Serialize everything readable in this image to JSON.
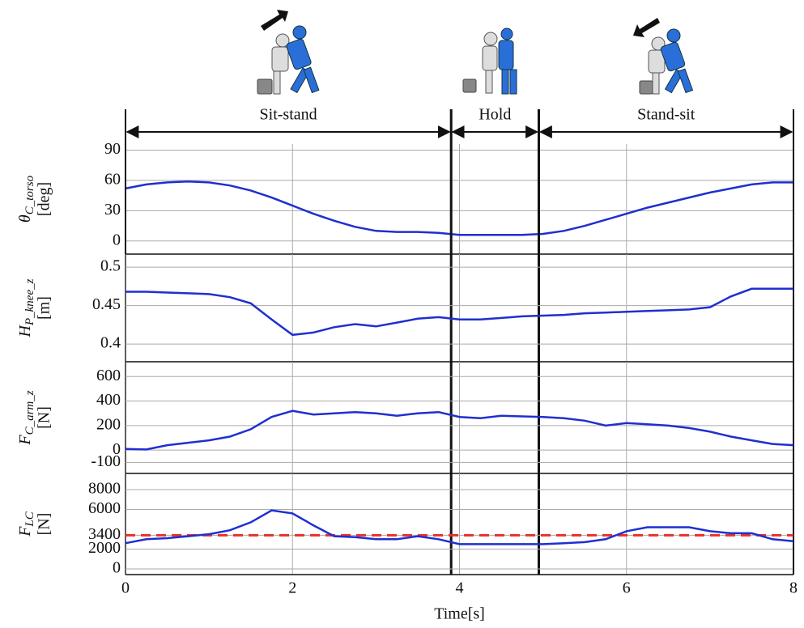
{
  "chart_data": [
    {
      "type": "line",
      "ylabel": {
        "symbol": "θ",
        "subscript": "C_torso",
        "unit": "[deg]"
      },
      "phases": [
        {
          "label": "Sit-stand",
          "start": 0,
          "end": 3.9
        },
        {
          "label": "Hold",
          "start": 3.9,
          "end": 4.95
        },
        {
          "label": "Stand-sit",
          "start": 4.95,
          "end": 8
        }
      ],
      "x": [
        0,
        0.25,
        0.5,
        0.75,
        1,
        1.25,
        1.5,
        1.75,
        2,
        2.25,
        2.5,
        2.75,
        3,
        3.25,
        3.5,
        3.75,
        4,
        4.25,
        4.5,
        4.75,
        5,
        5.25,
        5.5,
        5.75,
        6,
        6.25,
        6.5,
        6.75,
        7,
        7.25,
        7.5,
        7.75,
        8
      ],
      "series": [
        {
          "color": "#1f2fd0",
          "values": [
            52,
            56,
            58,
            59,
            58,
            55,
            50,
            43,
            35,
            27,
            20,
            14,
            10,
            9,
            9,
            8,
            6,
            6,
            6,
            6,
            7,
            10,
            15,
            21,
            27,
            33,
            38,
            43,
            48,
            52,
            56,
            58,
            58
          ]
        }
      ],
      "xlim": [
        0,
        8
      ],
      "ylim": [
        -13,
        96
      ],
      "yticks": [
        0,
        30,
        60,
        90
      ]
    },
    {
      "type": "line",
      "ylabel": {
        "symbol": "H",
        "subscript": "P_knee_z",
        "unit": "[m]"
      },
      "x": [
        0,
        0.25,
        0.5,
        0.75,
        1,
        1.25,
        1.5,
        1.75,
        2,
        2.25,
        2.5,
        2.75,
        3,
        3.25,
        3.5,
        3.75,
        4,
        4.25,
        4.5,
        4.75,
        5,
        5.25,
        5.5,
        5.75,
        6,
        6.25,
        6.5,
        6.75,
        7,
        7.25,
        7.5,
        7.75,
        8
      ],
      "series": [
        {
          "color": "#1f2fd0",
          "values": [
            0.468,
            0.468,
            0.467,
            0.466,
            0.465,
            0.461,
            0.453,
            0.432,
            0.412,
            0.415,
            0.422,
            0.426,
            0.423,
            0.428,
            0.433,
            0.435,
            0.432,
            0.432,
            0.434,
            0.436,
            0.437,
            0.438,
            0.44,
            0.441,
            0.442,
            0.443,
            0.444,
            0.445,
            0.448,
            0.462,
            0.472,
            0.472,
            0.472
          ]
        }
      ],
      "xlim": [
        0,
        8
      ],
      "ylim": [
        0.377,
        0.517
      ],
      "yticks": [
        0.4,
        0.45,
        0.5
      ]
    },
    {
      "type": "line",
      "ylabel": {
        "symbol": "F",
        "subscript": "C_arm_z",
        "unit": "[N]"
      },
      "x": [
        0,
        0.25,
        0.5,
        0.75,
        1,
        1.25,
        1.5,
        1.75,
        2,
        2.25,
        2.5,
        2.75,
        3,
        3.25,
        3.5,
        3.75,
        4,
        4.25,
        4.5,
        4.75,
        5,
        5.25,
        5.5,
        5.75,
        6,
        6.25,
        6.5,
        6.75,
        7,
        7.25,
        7.5,
        7.75,
        8
      ],
      "series": [
        {
          "color": "#1f2fd0",
          "values": [
            10,
            5,
            40,
            60,
            80,
            110,
            170,
            270,
            320,
            290,
            300,
            310,
            300,
            280,
            300,
            310,
            270,
            260,
            280,
            275,
            270,
            260,
            240,
            200,
            220,
            210,
            200,
            180,
            150,
            110,
            80,
            50,
            40
          ]
        }
      ],
      "xlim": [
        0,
        8
      ],
      "ylim": [
        -190,
        720
      ],
      "yticks": [
        -100,
        0,
        200,
        400,
        600
      ]
    },
    {
      "type": "line",
      "ylabel": {
        "symbol": "F",
        "subscript": "LC",
        "unit": "[N]"
      },
      "xlabel": "Time[s]",
      "x": [
        0,
        0.25,
        0.5,
        0.75,
        1,
        1.25,
        1.5,
        1.75,
        2,
        2.25,
        2.5,
        2.75,
        3,
        3.25,
        3.5,
        3.75,
        4,
        4.25,
        4.5,
        4.75,
        5,
        5.25,
        5.5,
        5.75,
        6,
        6.25,
        6.5,
        6.75,
        7,
        7.25,
        7.5,
        7.75,
        8
      ],
      "series": [
        {
          "color": "#1f2fd0",
          "values": [
            2600,
            3000,
            3100,
            3300,
            3500,
            3900,
            4700,
            5900,
            5600,
            4400,
            3300,
            3200,
            3000,
            3000,
            3300,
            3000,
            2500,
            2500,
            2500,
            2500,
            2500,
            2600,
            2700,
            3000,
            3800,
            4200,
            4200,
            4200,
            3800,
            3600,
            3600,
            3000,
            2800
          ]
        }
      ],
      "threshold": 3400,
      "threshold_color": "#e8302a",
      "xlim": [
        0,
        8
      ],
      "ylim": [
        -570,
        9630
      ],
      "yticks": [
        0,
        2000,
        3400,
        6000,
        8000
      ],
      "xticks": [
        0,
        2,
        4,
        6,
        8
      ]
    }
  ]
}
